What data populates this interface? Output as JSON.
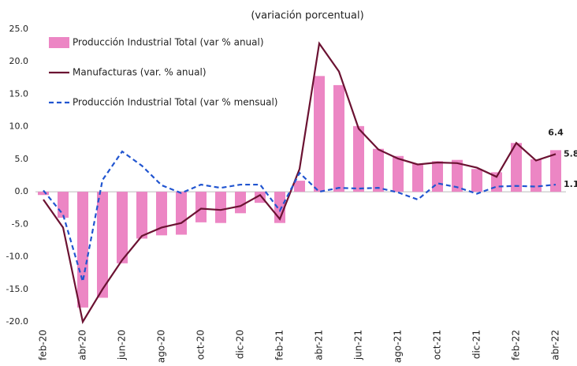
{
  "chart_data": {
    "type": "combo",
    "title": "(variación porcentual)",
    "categories": [
      "feb-20",
      null,
      "abr-20",
      null,
      "jun-20",
      null,
      "ago-20",
      null,
      "oct-20",
      null,
      "dic-20",
      null,
      "feb-21",
      null,
      "abr-21",
      null,
      "jun-21",
      null,
      "ago-21",
      null,
      "oct-21",
      null,
      "dic-21",
      null,
      "feb-22",
      null,
      "abr-22"
    ],
    "ylim": [
      -20,
      25
    ],
    "yticks": [
      {
        "value": -20,
        "label": "-20.0"
      },
      {
        "value": -15,
        "label": "-15.0"
      },
      {
        "value": -10,
        "label": "-10.0"
      },
      {
        "value": -5,
        "label": "-5.0"
      },
      {
        "value": 0,
        "label": "0.0"
      },
      {
        "value": 5,
        "label": "5.0"
      },
      {
        "value": 10,
        "label": "10.0"
      },
      {
        "value": 15,
        "label": "15.0"
      },
      {
        "value": 20,
        "label": "20.0"
      },
      {
        "value": 25,
        "label": "25.0"
      }
    ],
    "legend": "top-left",
    "series": [
      {
        "name": "Producción Industrial Total (var % anual)",
        "type": "bar",
        "color": "#ec86c4",
        "values": [
          -0.5,
          -4.0,
          -17.8,
          -16.3,
          -11.0,
          -7.2,
          -6.7,
          -6.6,
          -4.7,
          -4.8,
          -3.3,
          -1.7,
          -4.8,
          1.7,
          17.8,
          16.4,
          10.1,
          6.6,
          5.5,
          4.3,
          4.7,
          4.9,
          3.5,
          3.0,
          7.5,
          5.0,
          6.4
        ]
      },
      {
        "name": "Manufacturas (var. % anual)",
        "type": "line",
        "color": "#6b1232",
        "values": [
          -1.2,
          -5.5,
          -20.0,
          -15.0,
          -10.5,
          -6.8,
          -5.5,
          -4.8,
          -2.6,
          -2.8,
          -2.2,
          -0.5,
          -4.2,
          3.5,
          22.8,
          18.5,
          9.7,
          6.5,
          5.1,
          4.2,
          4.5,
          4.4,
          3.7,
          2.3,
          7.5,
          4.8,
          5.8
        ]
      },
      {
        "name": "Producción Industrial Total (var % mensual)",
        "type": "line",
        "style": "dashed",
        "color": "#2155d0",
        "values": [
          0.2,
          -3.5,
          -13.8,
          1.8,
          6.2,
          4.0,
          1.0,
          -0.2,
          1.1,
          0.6,
          1.1,
          1.1,
          -2.9,
          2.9,
          0.0,
          0.6,
          0.5,
          0.6,
          -0.1,
          -1.2,
          1.3,
          0.7,
          -0.3,
          0.8,
          0.9,
          0.8,
          1.1
        ]
      }
    ]
  }
}
